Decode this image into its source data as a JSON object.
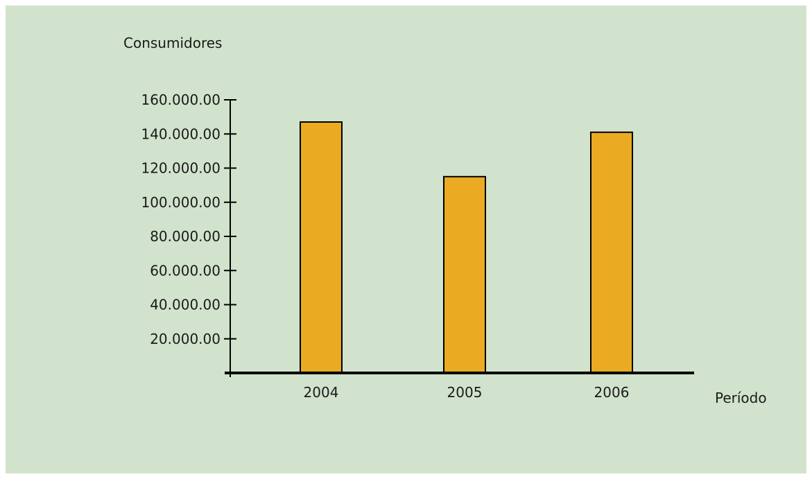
{
  "colors": {
    "background": "#d1e3cc",
    "bar_fill": "#eaab22",
    "bar_stroke": "#000000",
    "axis": "#000000",
    "text": "#1a1a1a"
  },
  "chart_data": {
    "type": "bar",
    "title": "",
    "xlabel": "Período",
    "ylabel": "Consumidores",
    "categories": [
      "2004",
      "2005",
      "2006"
    ],
    "values": [
      147000,
      115000,
      141000
    ],
    "ylim": [
      0,
      160000
    ],
    "yticks": [
      20000,
      40000,
      60000,
      80000,
      100000,
      120000,
      140000,
      160000
    ],
    "ytick_labels": [
      "20.000.00",
      "40.000.00",
      "60.000.00",
      "80.000.00",
      "100.000.00",
      "120.000.00",
      "140.000.00",
      "160.000.00"
    ],
    "grid": false,
    "legend": "none"
  }
}
